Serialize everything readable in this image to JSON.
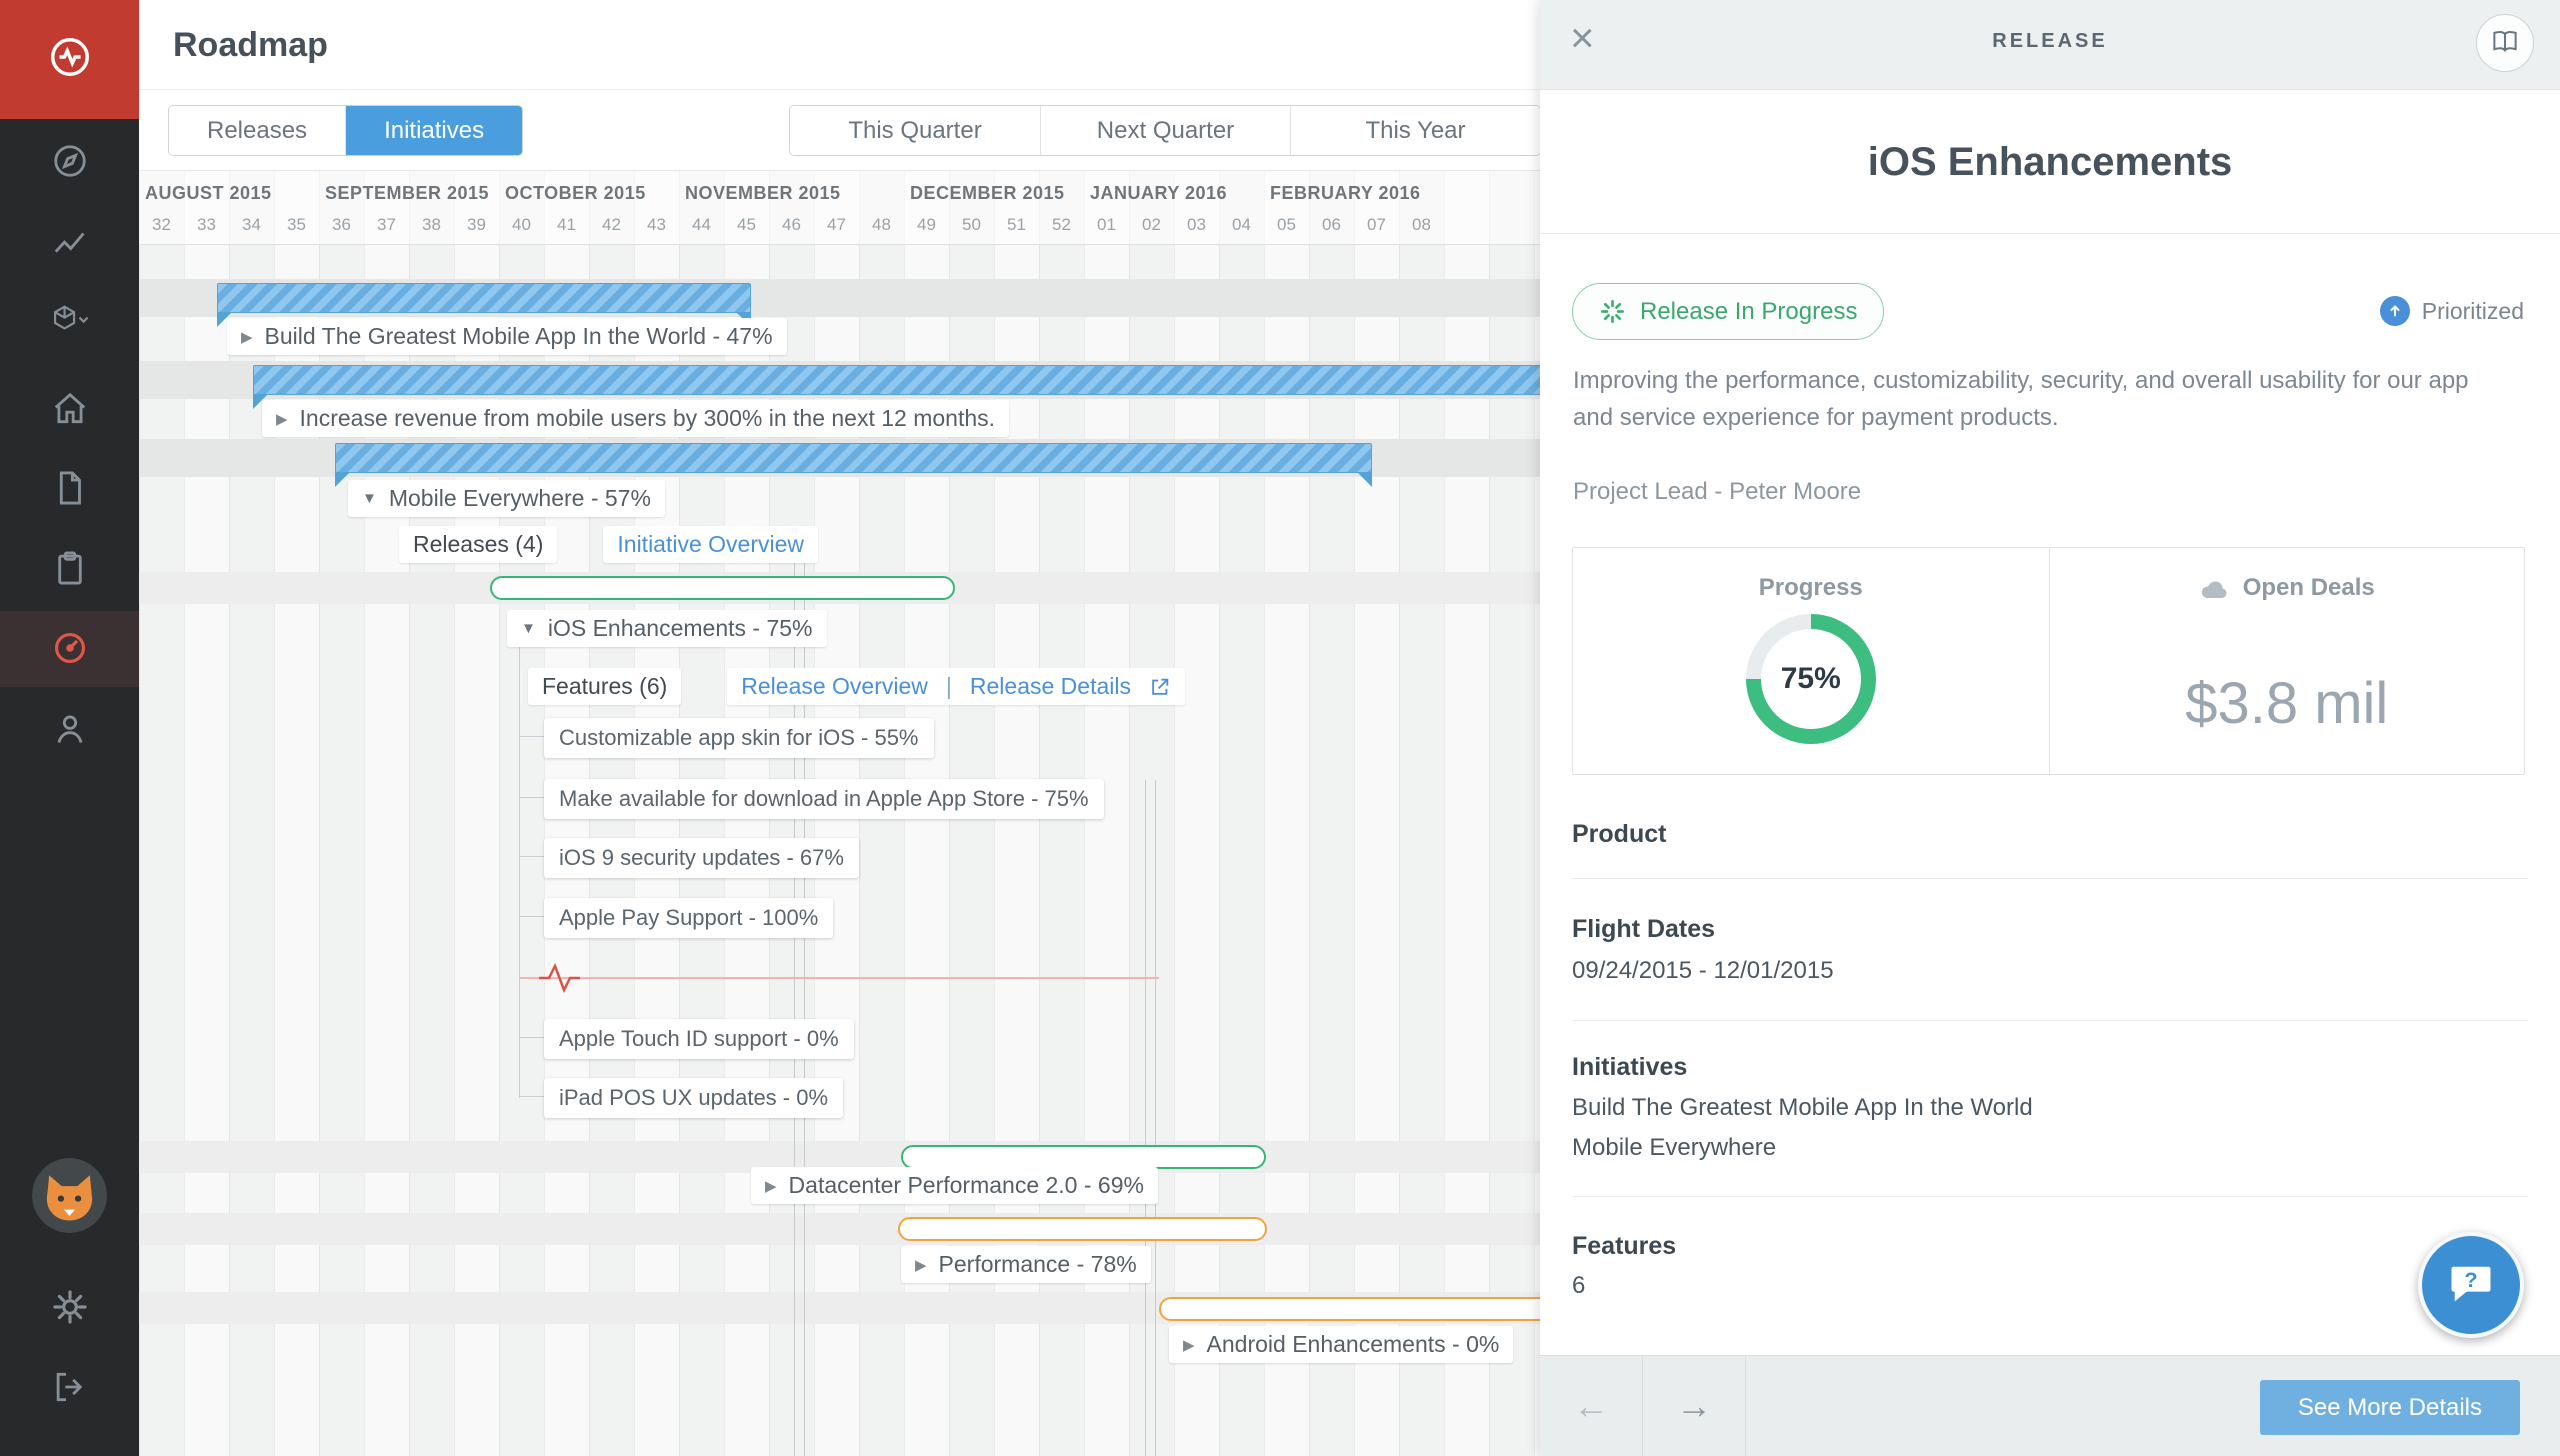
{
  "app": {
    "title": "Roadmap"
  },
  "sidebar": {
    "icons": [
      "pulse-logo",
      "compass",
      "chart",
      "product-selector",
      "home",
      "notes",
      "clipboard",
      "roadmap",
      "people",
      "avatar",
      "settings",
      "logout"
    ]
  },
  "tabs": {
    "releases": "Releases",
    "initiatives": "Initiatives"
  },
  "filters": {
    "this_quarter": "This Quarter",
    "next_quarter": "Next Quarter",
    "this_year": "This Year"
  },
  "timeline": {
    "months": [
      {
        "label": "AUGUST 2015",
        "weeks": [
          "32",
          "33",
          "34",
          "35"
        ]
      },
      {
        "label": "SEPTEMBER 2015",
        "weeks": [
          "36",
          "37",
          "38",
          "39"
        ]
      },
      {
        "label": "OCTOBER 2015",
        "weeks": [
          "40",
          "41",
          "42",
          "43"
        ]
      },
      {
        "label": "NOVEMBER 2015",
        "weeks": [
          "44",
          "45",
          "46",
          "47",
          "48"
        ]
      },
      {
        "label": "DECEMBER 2015",
        "weeks": [
          "49",
          "50",
          "51",
          "52"
        ]
      },
      {
        "label": "JANUARY 2016",
        "weeks": [
          "01",
          "02",
          "03",
          "04"
        ]
      },
      {
        "label": "FEBRUARY 2016",
        "weeks": [
          "05",
          "06",
          "07",
          "08"
        ]
      }
    ]
  },
  "gantt": {
    "initiative1": "Build The Greatest Mobile App In the World - 47%",
    "goal": "Increase revenue from mobile users by 300% in the next 12 months.",
    "initiative2": "Mobile Everywhere - 57%",
    "releases_link": "Releases (4)",
    "initiative_overview_link": "Initiative Overview",
    "release1": "iOS Enhancements - 75%",
    "features_link": "Features (6)",
    "release_overview_link": "Release Overview",
    "release_details_link": "Release Details",
    "features": [
      "Customizable app skin for iOS - 55%",
      "Make available for download in Apple App Store - 75%",
      "iOS 9 security updates - 67%",
      "Apple Pay Support - 100%",
      "Apple Touch ID support - 0%",
      "iPad POS UX updates - 0%"
    ],
    "release2": "Datacenter Performance 2.0 - 69%",
    "release3": "Performance - 78%",
    "release4": "Android Enhancements - 0%"
  },
  "panel": {
    "kind": "RELEASE",
    "title": "iOS Enhancements",
    "status": "Release In Progress",
    "prioritized": "Prioritized",
    "description": "Improving the performance, customizability, security, and overall usability for our app and service experience for payment products.",
    "project_lead": "Project Lead - Peter Moore",
    "progress": {
      "label": "Progress",
      "value": "75%",
      "percent": 75
    },
    "open_deals": {
      "label": "Open Deals",
      "value": "$3.8 mil"
    },
    "sections": {
      "product_label": "Product",
      "flight_dates_label": "Flight Dates",
      "flight_dates_value": "09/24/2015  -  12/01/2015",
      "initiatives_label": "Initiatives",
      "initiatives": [
        "Build The Greatest Mobile App In the World",
        "Mobile Everywhere"
      ],
      "features_label": "Features",
      "features_count": "6"
    },
    "see_more_button": "See More Details"
  }
}
